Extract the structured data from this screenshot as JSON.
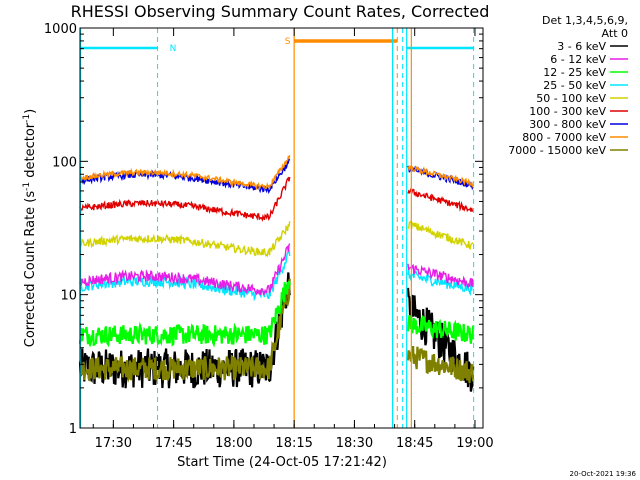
{
  "chart_data": {
    "type": "line",
    "title": "RHESSI Observing Summary Count Rates, Corrected",
    "xlabel": "Start Time (24-Oct-05 17:21:42)",
    "ylabel_main": "Corrected Count Rate (s",
    "ylabel_sup1": "-1",
    "ylabel_mid": " detector",
    "ylabel_sup2": "-1",
    "ylabel_end": ")",
    "y_scale": "log",
    "ylim": [
      1,
      1000
    ],
    "xlim": [
      "17:21:42",
      "19:02:00"
    ],
    "x_ticks": [
      "17:30",
      "17:45",
      "18:00",
      "18:15",
      "18:30",
      "18:45",
      "19:00"
    ],
    "y_ticks": [
      "1",
      "10",
      "100",
      "1000"
    ],
    "legend_header": [
      "Det 1,3,4,5,6,9,",
      "Att 0"
    ],
    "legend_position": "right",
    "series": [
      {
        "name": "3 - 6 keV",
        "color": "#000000"
      },
      {
        "name": "6 - 12 keV",
        "color": "#e61ee6"
      },
      {
        "name": "12 - 25 keV",
        "color": "#00ff00"
      },
      {
        "name": "25 - 50 keV",
        "color": "#00e6ff"
      },
      {
        "name": "50 - 100 keV",
        "color": "#d2d200"
      },
      {
        "name": "100 - 300 keV",
        "color": "#e00000"
      },
      {
        "name": "300 - 800 keV",
        "color": "#0000e0"
      },
      {
        "name": "800 - 7000 keV",
        "color": "#ff8c00"
      },
      {
        "name": "7000 - 15000 keV",
        "color": "#808000"
      }
    ],
    "flags": [
      {
        "label": "N",
        "color": "#00e6ff"
      },
      {
        "label": "S",
        "color": "#ff8c00"
      }
    ]
  },
  "footer_timestamp": "20-Oct-2021 19:36"
}
